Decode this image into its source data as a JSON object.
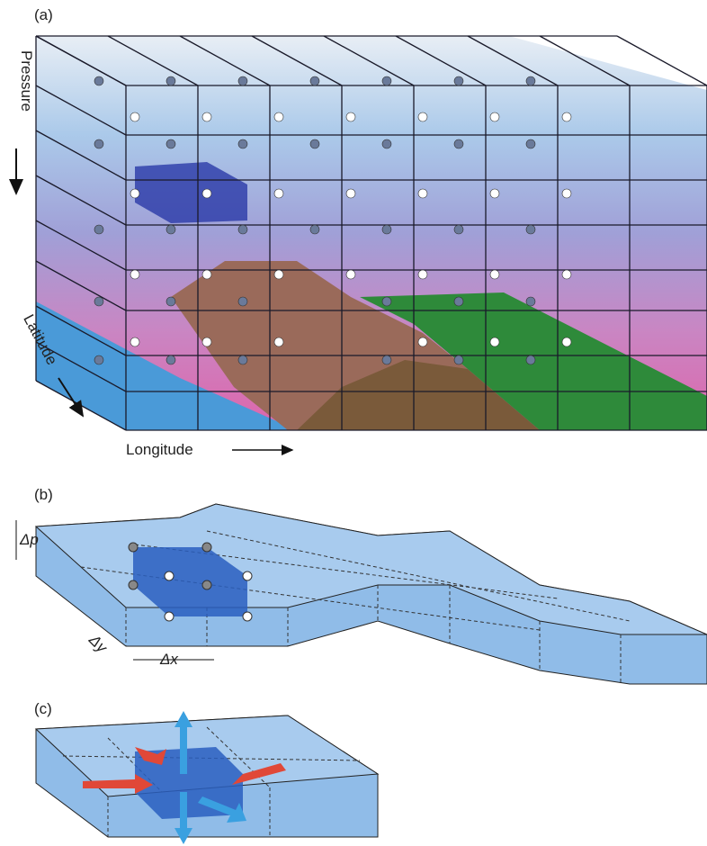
{
  "panel_a": {
    "label": "(a)",
    "axis_pressure": "Pressure",
    "axis_latitude": "Latitude",
    "axis_longitude": "Longitude"
  },
  "panel_b": {
    "label": "(b)",
    "delta_p": "Δp",
    "delta_y": "Δy",
    "delta_x": "Δx"
  },
  "panel_c": {
    "label": "(c)"
  }
}
